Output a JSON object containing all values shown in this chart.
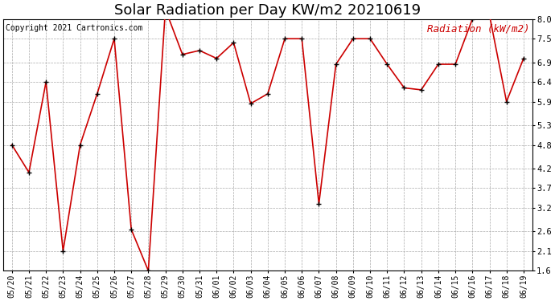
{
  "title": "Solar Radiation per Day KW/m2 20210619",
  "copyright": "Copyright 2021 Cartronics.com",
  "legend_label": "Radiation (kW/m2)",
  "dates": [
    "05/20",
    "05/21",
    "05/22",
    "05/23",
    "05/24",
    "05/25",
    "05/26",
    "05/27",
    "05/28",
    "05/29",
    "05/30",
    "05/31",
    "06/01",
    "06/02",
    "06/03",
    "06/04",
    "06/05",
    "06/06",
    "06/07",
    "06/08",
    "06/09",
    "06/10",
    "06/11",
    "06/12",
    "06/13",
    "06/14",
    "06/15",
    "06/16",
    "06/17",
    "06/18",
    "06/19"
  ],
  "values": [
    4.8,
    4.1,
    6.4,
    2.1,
    4.8,
    6.1,
    7.5,
    2.65,
    1.6,
    8.25,
    7.1,
    7.2,
    7.0,
    7.4,
    5.85,
    6.1,
    7.5,
    7.5,
    3.3,
    6.85,
    7.5,
    7.5,
    6.85,
    6.25,
    6.2,
    6.85,
    6.85,
    8.0,
    8.1,
    5.9,
    7.0
  ],
  "line_color": "#cc0000",
  "marker_color": "#000000",
  "background_color": "#ffffff",
  "grid_color": "#aaaaaa",
  "ylim": [
    1.6,
    8.0
  ],
  "yticks": [
    1.6,
    2.1,
    2.6,
    3.2,
    3.7,
    4.2,
    4.8,
    5.3,
    5.9,
    6.4,
    6.9,
    7.5,
    8.0
  ],
  "title_fontsize": 13,
  "copyright_fontsize": 7,
  "legend_fontsize": 9,
  "tick_fontsize": 7,
  "ytick_fontsize": 7.5
}
